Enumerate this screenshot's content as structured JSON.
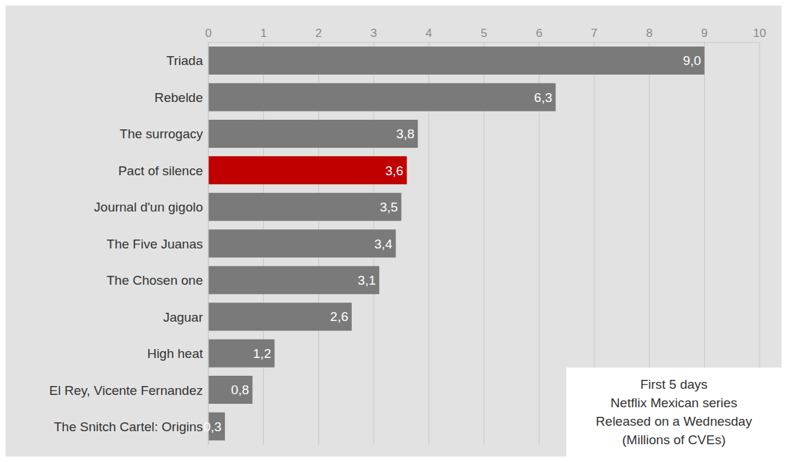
{
  "chart_data": {
    "type": "bar",
    "orientation": "horizontal",
    "categories": [
      "Triada",
      "Rebelde",
      "The surrogacy",
      "Pact of silence",
      "Journal d'un gigolo",
      "The Five Juanas",
      "The Chosen one",
      "Jaguar",
      "High heat",
      "El Rey, Vicente Fernandez",
      "The Snitch Cartel: Origins"
    ],
    "values": [
      9.0,
      6.3,
      3.8,
      3.6,
      3.5,
      3.4,
      3.1,
      2.6,
      1.2,
      0.8,
      0.3
    ],
    "value_labels": [
      "9,0",
      "6,3",
      "3,8",
      "3,6",
      "3,5",
      "3,4",
      "3,1",
      "2,6",
      "1,2",
      "0,8",
      "0,3"
    ],
    "colors": [
      "#7a7a7a",
      "#7a7a7a",
      "#7a7a7a",
      "#c00000",
      "#7a7a7a",
      "#7a7a7a",
      "#7a7a7a",
      "#7a7a7a",
      "#7a7a7a",
      "#7a7a7a",
      "#7a7a7a"
    ],
    "xlim": [
      0,
      10
    ],
    "xticks": [
      0,
      1,
      2,
      3,
      4,
      5,
      6,
      7,
      8,
      9,
      10
    ],
    "grid": true,
    "data_labels": true,
    "annotations": [
      "First 5 days",
      "Netflix Mexican series",
      "Released on a Wednesday",
      "(Millions of CVEs)"
    ]
  }
}
